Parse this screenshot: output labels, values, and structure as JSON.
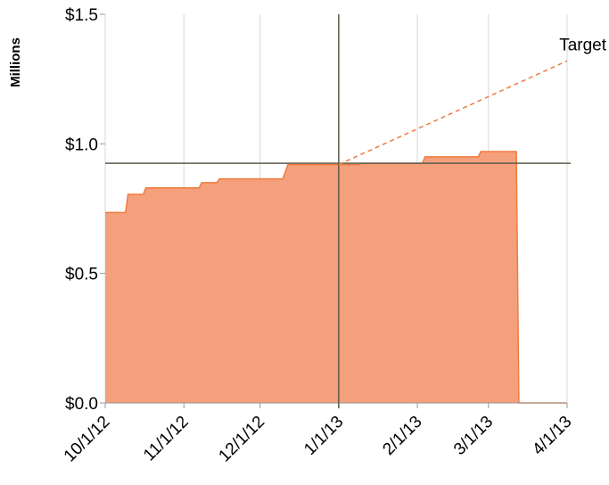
{
  "chart_data": {
    "type": "area",
    "y_label": "Millions",
    "x": [
      "2012-10-01",
      "2012-10-09",
      "2012-10-10",
      "2012-10-16",
      "2012-10-17",
      "2012-11-07",
      "2012-11-08",
      "2012-11-14",
      "2012-11-15",
      "2012-12-10",
      "2012-12-12",
      "2013-01-09",
      "2013-01-10",
      "2013-02-03",
      "2013-02-04",
      "2013-02-25",
      "2013-02-26",
      "2013-03-12",
      "2013-03-13",
      "2013-04-01"
    ],
    "series": [
      {
        "color": "#f5a07c",
        "line_color": "#ef7a3e",
        "values": [
          0.735,
          0.735,
          0.805,
          0.805,
          0.83,
          0.83,
          0.85,
          0.85,
          0.865,
          0.865,
          0.92,
          0.92,
          0.925,
          0.925,
          0.95,
          0.95,
          0.97,
          0.97,
          0,
          0
        ]
      }
    ],
    "target": {
      "label": "Target",
      "color": "#ef7a3e",
      "x": [
        "2013-01-01",
        "2013-04-01"
      ],
      "values": [
        0.92,
        1.32
      ]
    },
    "reference": {
      "x": "2013-01-01",
      "y": 0.925,
      "color": "#5b5b4b"
    },
    "xlim": [
      "2012-10-01",
      "2013-04-01"
    ],
    "xticks": [
      {
        "value": "2012-10-01",
        "label": "10/1/12"
      },
      {
        "value": "2012-11-01",
        "label": "11/1/12"
      },
      {
        "value": "2012-12-01",
        "label": "12/1/12"
      },
      {
        "value": "2013-01-01",
        "label": "1/1/13"
      },
      {
        "value": "2013-02-01",
        "label": "2/1/13"
      },
      {
        "value": "2013-03-01",
        "label": "3/1/13"
      },
      {
        "value": "2013-04-01",
        "label": "4/1/13"
      }
    ],
    "ylim": [
      0,
      1.5
    ],
    "yticks": [
      {
        "value": 0,
        "label": "$0.0"
      },
      {
        "value": 0.5,
        "label": "$0.5"
      },
      {
        "value": 1,
        "label": "$1.0"
      },
      {
        "value": 1.5,
        "label": "$1.5"
      }
    ],
    "grid": true
  }
}
